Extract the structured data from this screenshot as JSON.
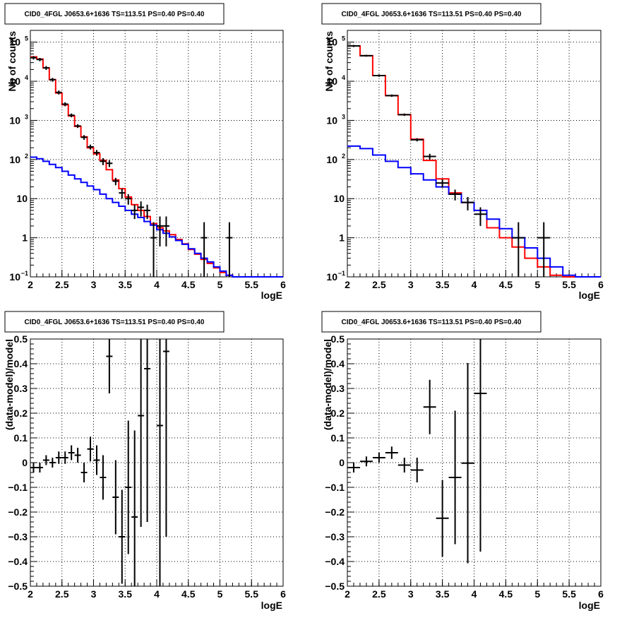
{
  "chart_data": [
    {
      "type": "line",
      "title": "CID0_4FGL J0653.6+1636 TS=113.51 PS=0.40 PS=0.40",
      "xlabel": "logE",
      "ylabel": "Nb of counts",
      "xlim": [
        2,
        6
      ],
      "ylim": [
        0.1,
        200000
      ],
      "yscale": "log",
      "grid": true,
      "x_ticks": [
        "2",
        "2.5",
        "3",
        "3.5",
        "4",
        "4.5",
        "5",
        "5.5",
        "6"
      ],
      "y_ticks": [
        {
          "v": 0.1,
          "base": "10",
          "exp": "−1"
        },
        {
          "v": 1,
          "base": "1",
          "exp": ""
        },
        {
          "v": 10,
          "base": "10",
          "exp": ""
        },
        {
          "v": 100,
          "base": "10",
          "exp": "2"
        },
        {
          "v": 1000,
          "base": "10",
          "exp": "3"
        },
        {
          "v": 10000,
          "base": "10",
          "exp": "4"
        },
        {
          "v": 100000,
          "base": "10",
          "exp": "5"
        }
      ],
      "bin_edges": [
        2.0,
        2.1,
        2.2,
        2.3,
        2.4,
        2.5,
        2.6,
        2.7,
        2.8,
        2.9,
        3.0,
        3.1,
        3.2,
        3.3,
        3.4,
        3.5,
        3.6,
        3.7,
        3.8,
        3.9,
        4.0,
        4.1,
        4.2,
        4.3,
        4.4,
        4.5,
        4.6,
        4.7,
        4.8,
        4.9,
        5.0,
        5.1,
        5.2,
        5.3,
        5.4,
        5.5,
        5.6,
        5.7,
        5.8,
        5.9,
        6.0
      ],
      "series": [
        {
          "color": "#ff0000",
          "values": [
            42000,
            37000,
            22000,
            11000,
            5000,
            2500,
            1300,
            700,
            380,
            200,
            140,
            95,
            55,
            30,
            18,
            11,
            7,
            5,
            3.5,
            2.3,
            1.8,
            1.5,
            1.2,
            0.9,
            0.7,
            0.5,
            0.38,
            0.28,
            0.22,
            0.17,
            0.13,
            0.11,
            0.1,
            0.1,
            0.1,
            0.1,
            0.1,
            0.1,
            0.1,
            0.1
          ]
        },
        {
          "color": "#0000ff",
          "values": [
            115,
            105,
            90,
            75,
            62,
            50,
            40,
            32,
            26,
            21,
            17,
            13,
            10,
            8,
            6.4,
            5,
            4,
            3.3,
            2.6,
            2.1,
            1.6,
            1.3,
            1.05,
            0.85,
            0.68,
            0.52,
            0.4,
            0.3,
            0.24,
            0.18,
            0.14,
            0.11,
            0.1,
            0.1,
            0.1,
            0.1,
            0.1,
            0.1,
            0.1,
            0.1
          ]
        }
      ],
      "data_points": [
        {
          "x": 2.05,
          "y": 40000,
          "ylo": 36000,
          "yhi": 44000
        },
        {
          "x": 2.15,
          "y": 36000,
          "ylo": 32500,
          "yhi": 39500
        },
        {
          "x": 2.25,
          "y": 22000,
          "ylo": 19500,
          "yhi": 24500
        },
        {
          "x": 2.35,
          "y": 11000,
          "ylo": 9800,
          "yhi": 12200
        },
        {
          "x": 2.45,
          "y": 5200,
          "ylo": 4600,
          "yhi": 5800
        },
        {
          "x": 2.55,
          "y": 2600,
          "ylo": 2300,
          "yhi": 2900
        },
        {
          "x": 2.65,
          "y": 1350,
          "ylo": 1200,
          "yhi": 1500
        },
        {
          "x": 2.75,
          "y": 720,
          "ylo": 640,
          "yhi": 800
        },
        {
          "x": 2.85,
          "y": 370,
          "ylo": 320,
          "yhi": 420
        },
        {
          "x": 2.95,
          "y": 210,
          "ylo": 180,
          "yhi": 240
        },
        {
          "x": 3.05,
          "y": 150,
          "ylo": 125,
          "yhi": 175
        },
        {
          "x": 3.15,
          "y": 90,
          "ylo": 72,
          "yhi": 108
        },
        {
          "x": 3.25,
          "y": 80,
          "ylo": 64,
          "yhi": 96
        },
        {
          "x": 3.35,
          "y": 28,
          "ylo": 22,
          "yhi": 34
        },
        {
          "x": 3.45,
          "y": 14,
          "ylo": 10,
          "yhi": 18
        },
        {
          "x": 3.55,
          "y": 10,
          "ylo": 7,
          "yhi": 13
        },
        {
          "x": 3.65,
          "y": 5,
          "ylo": 3,
          "yhi": 7
        },
        {
          "x": 3.75,
          "y": 6,
          "ylo": 3.5,
          "yhi": 8.5
        },
        {
          "x": 3.85,
          "y": 5,
          "ylo": 3,
          "yhi": 7
        },
        {
          "x": 3.95,
          "y": 1,
          "ylo": 0.1,
          "yhi": 2.5
        },
        {
          "x": 4.05,
          "y": 2,
          "ylo": 0.6,
          "yhi": 3.5
        },
        {
          "x": 4.15,
          "y": 2,
          "ylo": 0.6,
          "yhi": 3.5
        },
        {
          "x": 4.75,
          "y": 1,
          "ylo": 0.1,
          "yhi": 2.5
        },
        {
          "x": 5.15,
          "y": 1,
          "ylo": 0.1,
          "yhi": 2.5
        }
      ]
    },
    {
      "type": "line",
      "title": "CID0_4FGL J0653.6+1636 TS=113.51 PS=0.40 PS=0.40",
      "xlabel": "logE",
      "ylabel": "Nb of counts",
      "xlim": [
        2,
        6
      ],
      "ylim": [
        0.1,
        200000
      ],
      "yscale": "log",
      "grid": true,
      "x_ticks": [
        "2",
        "2.5",
        "3",
        "3.5",
        "4",
        "4.5",
        "5",
        "5.5",
        "6"
      ],
      "y_ticks": [
        {
          "v": 0.1,
          "base": "10",
          "exp": "−1"
        },
        {
          "v": 1,
          "base": "1",
          "exp": ""
        },
        {
          "v": 10,
          "base": "10",
          "exp": ""
        },
        {
          "v": 100,
          "base": "10",
          "exp": "2"
        },
        {
          "v": 1000,
          "base": "10",
          "exp": "3"
        },
        {
          "v": 10000,
          "base": "10",
          "exp": "4"
        },
        {
          "v": 100000,
          "base": "10",
          "exp": "5"
        }
      ],
      "bin_edges": [
        2.0,
        2.2,
        2.4,
        2.6,
        2.8,
        3.0,
        3.2,
        3.4,
        3.6,
        3.8,
        4.0,
        4.2,
        4.4,
        4.6,
        4.8,
        5.0,
        5.2,
        5.4,
        5.6,
        5.8,
        6.0
      ],
      "series": [
        {
          "color": "#ff0000",
          "values": [
            80000,
            45000,
            14000,
            4300,
            1400,
            330,
            95,
            32,
            14,
            8,
            5,
            1.8,
            1,
            0.58,
            0.3,
            0.18,
            0.11,
            0.1,
            0.1,
            0.1
          ]
        },
        {
          "color": "#0000ff",
          "values": [
            220,
            190,
            130,
            90,
            62,
            43,
            30,
            20,
            13,
            8,
            5,
            3,
            1.7,
            1,
            0.55,
            0.3,
            0.18,
            0.11,
            0.1,
            0.1
          ]
        }
      ],
      "data_points": [
        {
          "x": 2.1,
          "y": 80000,
          "ylo": 75000,
          "yhi": 85000
        },
        {
          "x": 2.3,
          "y": 45000,
          "ylo": 42500,
          "yhi": 47500
        },
        {
          "x": 2.5,
          "y": 14000,
          "ylo": 13000,
          "yhi": 15000
        },
        {
          "x": 2.7,
          "y": 4300,
          "ylo": 4000,
          "yhi": 4600
        },
        {
          "x": 2.9,
          "y": 1400,
          "ylo": 1300,
          "yhi": 1500
        },
        {
          "x": 3.1,
          "y": 320,
          "ylo": 290,
          "yhi": 350
        },
        {
          "x": 3.3,
          "y": 120,
          "ylo": 100,
          "yhi": 140
        },
        {
          "x": 3.5,
          "y": 25,
          "ylo": 19,
          "yhi": 31
        },
        {
          "x": 3.7,
          "y": 13,
          "ylo": 9,
          "yhi": 17
        },
        {
          "x": 3.9,
          "y": 8,
          "ylo": 5,
          "yhi": 11
        },
        {
          "x": 4.1,
          "y": 4,
          "ylo": 2,
          "yhi": 6
        },
        {
          "x": 4.7,
          "y": 1,
          "ylo": 0.1,
          "yhi": 2.5
        },
        {
          "x": 5.1,
          "y": 1,
          "ylo": 0.1,
          "yhi": 2.5
        }
      ]
    },
    {
      "type": "scatter",
      "title": "CID0_4FGL J0653.6+1636 TS=113.51 PS=0.40 PS=0.40",
      "xlabel": "logE",
      "ylabel": "(data-model)/model",
      "xlim": [
        2,
        6
      ],
      "ylim": [
        -0.5,
        0.5
      ],
      "grid": true,
      "x_ticks": [
        "2",
        "2.5",
        "3",
        "3.5",
        "4",
        "4.5",
        "5",
        "5.5",
        "6"
      ],
      "y_ticks": [
        "−0.5",
        "−0.4",
        "−0.3",
        "−0.2",
        "−0.1",
        "0",
        "0.1",
        "0.2",
        "0.3",
        "0.4",
        "0.5"
      ],
      "x_halfwidth": 0.05,
      "data_points": [
        {
          "x": 2.05,
          "y": -0.02,
          "err": 0.02
        },
        {
          "x": 2.15,
          "y": -0.02,
          "err": 0.02
        },
        {
          "x": 2.25,
          "y": 0.01,
          "err": 0.02
        },
        {
          "x": 2.35,
          "y": 0.0,
          "err": 0.02
        },
        {
          "x": 2.45,
          "y": 0.02,
          "err": 0.025
        },
        {
          "x": 2.55,
          "y": 0.02,
          "err": 0.025
        },
        {
          "x": 2.65,
          "y": 0.04,
          "err": 0.03
        },
        {
          "x": 2.75,
          "y": 0.03,
          "err": 0.03
        },
        {
          "x": 2.85,
          "y": -0.04,
          "err": 0.04
        },
        {
          "x": 2.95,
          "y": 0.055,
          "err": 0.05
        },
        {
          "x": 3.05,
          "y": 0.01,
          "err": 0.06
        },
        {
          "x": 3.15,
          "y": -0.06,
          "err": 0.09
        },
        {
          "x": 3.25,
          "y": 0.43,
          "err": 0.15
        },
        {
          "x": 3.35,
          "y": -0.14,
          "err": 0.15
        },
        {
          "x": 3.45,
          "y": -0.3,
          "err": 0.19
        },
        {
          "x": 3.55,
          "y": -0.1,
          "err": 0.27
        },
        {
          "x": 3.65,
          "y": -0.22,
          "err": 0.35
        },
        {
          "x": 3.75,
          "y": 0.19,
          "err": 0.45
        },
        {
          "x": 3.85,
          "y": 0.38,
          "err": 0.62
        },
        {
          "x": 4.05,
          "y": 0.15,
          "err": 0.75
        },
        {
          "x": 4.15,
          "y": 0.45,
          "err": 0.75
        }
      ]
    },
    {
      "type": "scatter",
      "title": "CID0_4FGL J0653.6+1636 TS=113.51 PS=0.40 PS=0.40",
      "xlabel": "logE",
      "ylabel": "(data-model)/model",
      "xlim": [
        2,
        6
      ],
      "ylim": [
        -0.5,
        0.5
      ],
      "grid": true,
      "x_ticks": [
        "2",
        "2.5",
        "3",
        "3.5",
        "4",
        "4.5",
        "5",
        "5.5",
        "6"
      ],
      "y_ticks": [
        "−0.5",
        "−0.4",
        "−0.3",
        "−0.2",
        "−0.1",
        "0",
        "0.1",
        "0.2",
        "0.3",
        "0.4",
        "0.5"
      ],
      "x_halfwidth": 0.1,
      "data_points": [
        {
          "x": 2.1,
          "y": -0.02,
          "err": 0.02
        },
        {
          "x": 2.3,
          "y": 0.005,
          "err": 0.02
        },
        {
          "x": 2.5,
          "y": 0.02,
          "err": 0.02
        },
        {
          "x": 2.7,
          "y": 0.04,
          "err": 0.025
        },
        {
          "x": 2.9,
          "y": -0.01,
          "err": 0.03
        },
        {
          "x": 3.1,
          "y": -0.03,
          "err": 0.05
        },
        {
          "x": 3.3,
          "y": 0.225,
          "err": 0.11
        },
        {
          "x": 3.5,
          "y": -0.225,
          "err": 0.155
        },
        {
          "x": 3.7,
          "y": -0.06,
          "err": 0.27
        },
        {
          "x": 3.9,
          "y": -0.002,
          "err": 0.405
        },
        {
          "x": 4.1,
          "y": 0.28,
          "err": 0.64
        }
      ]
    }
  ]
}
